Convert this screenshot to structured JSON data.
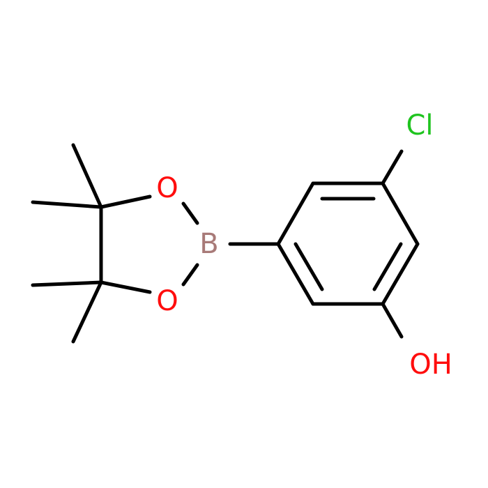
{
  "atoms": {
    "chlorine": "Cl",
    "oxygen_top": "O",
    "oxygen_bottom": "O",
    "boron": "B",
    "hydroxyl": "OH"
  }
}
